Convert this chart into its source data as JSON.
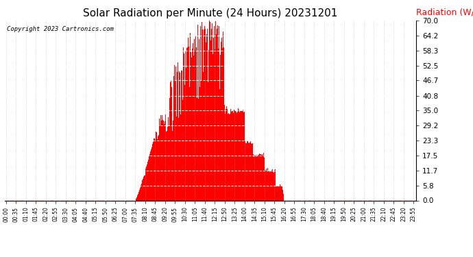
{
  "title": "Solar Radiation per Minute (24 Hours) 20231201",
  "ylabel": "Radiation (W/m2)",
  "copyright": "Copyright 2023 Cartronics.com",
  "bar_color": "#ff0000",
  "bg_color": "#ffffff",
  "title_fontsize": 11,
  "ylabel_color": "#ff0000",
  "copyright_color": "#000000",
  "yticks": [
    0.0,
    5.8,
    11.7,
    17.5,
    23.3,
    29.2,
    35.0,
    40.8,
    46.7,
    52.5,
    58.3,
    64.2,
    70.0
  ],
  "ylim": [
    0.0,
    70.0
  ],
  "total_minutes": 1440,
  "sunrise_minute": 455,
  "sunset_minute": 980,
  "peak_minute": 700,
  "peak_value": 70.0,
  "tick_interval": 35
}
